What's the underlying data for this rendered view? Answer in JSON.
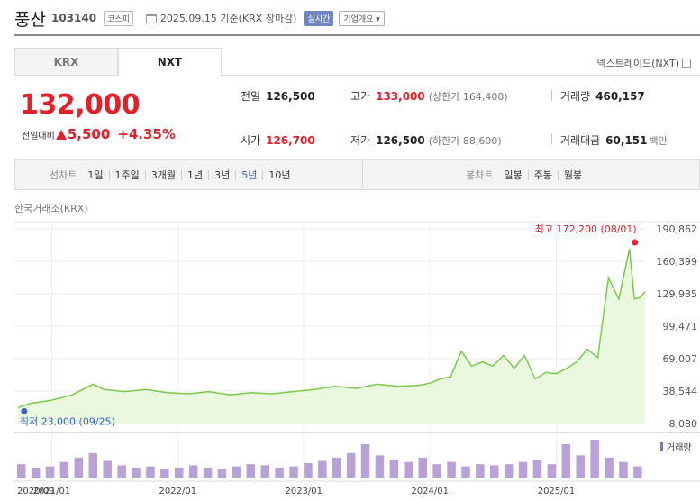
{
  "header": {
    "stock_name": "풍산",
    "stock_code": "103140",
    "market_badge": "코스피",
    "date_text": "2025.09.15  기준(KRX 장마감)",
    "live_badge": "실시간",
    "info_badge": "기업개요 ▾"
  },
  "tabs": {
    "krx": "KRX",
    "nxt": "NXT",
    "active": "NXT"
  },
  "nxt_trade_label": "넥스트레이드(NXT)",
  "price": {
    "current": "132,000",
    "change_label": "전일대비",
    "change_value": "5,500",
    "change_pct": "+4.35%",
    "direction": "up"
  },
  "stats": {
    "prev_close_label": "전일",
    "prev_close": "126,500",
    "high_label": "고가",
    "high": "133,000",
    "upper_limit": "(상한가 164,400)",
    "volume_label": "거래량",
    "volume": "460,157",
    "open_label": "시가",
    "open": "126,700",
    "low_label": "저가",
    "low": "126,500",
    "lower_limit": "(하한가 88,600)",
    "value_label": "거래대금",
    "value": "60,151",
    "value_unit": "백만"
  },
  "period": {
    "chart_label": "선차트",
    "items": [
      "1일",
      "1주일",
      "3개월",
      "1년",
      "3년",
      "5년",
      "10년"
    ],
    "active": "5년",
    "candle_label": "봉차트",
    "candle_items": [
      "일봉",
      "주봉",
      "월봉"
    ]
  },
  "exchange_label": "한국거래소(KRX)",
  "chart_data": {
    "type": "line",
    "title": "",
    "y_ticks": [
      190862,
      160399,
      129935,
      99471,
      69007,
      38544,
      8080
    ],
    "y_tick_labels": [
      "190,862",
      "160,399",
      "129,935",
      "99,471",
      "69,007",
      "38,544",
      "8,080"
    ],
    "ylim": [
      8080,
      190862
    ],
    "x_tick_labels": [
      "2020/09",
      "2021/01",
      "2022/01",
      "2023/01",
      "2024/01",
      "2025/01"
    ],
    "x_tick_dates": [
      "2020-09",
      "2021-01",
      "2022-01",
      "2023-01",
      "2024-01",
      "2025-01"
    ],
    "xlim": [
      "2020-09-15",
      "2025-09-15"
    ],
    "series": [
      {
        "name": "",
        "x": [
          "2020-09-25",
          "2020-11",
          "2021-01",
          "2021-03",
          "2021-05",
          "2021-06",
          "2021-08",
          "2021-10",
          "2021-12",
          "2022-02",
          "2022-04",
          "2022-06",
          "2022-08",
          "2022-10",
          "2022-12",
          "2023-02",
          "2023-04",
          "2023-06",
          "2023-08",
          "2023-10",
          "2023-12",
          "2024-01",
          "2024-02",
          "2024-03",
          "2024-04",
          "2024-05",
          "2024-06",
          "2024-07",
          "2024-08",
          "2024-09",
          "2024-10",
          "2024-11",
          "2024-12",
          "2025-01",
          "2025-02",
          "2025-03",
          "2025-04",
          "2025-05",
          "2025-06",
          "2025-07",
          "2025-08-01",
          "2025-08-15",
          "2025-09-01",
          "2025-09-15"
        ],
        "values": [
          23000,
          27000,
          30000,
          35000,
          45000,
          40000,
          38000,
          40000,
          37000,
          36000,
          38000,
          35000,
          37000,
          36000,
          38000,
          40000,
          43000,
          41000,
          45000,
          43000,
          44000,
          46000,
          50000,
          52000,
          76000,
          62000,
          66000,
          62000,
          72000,
          60000,
          72000,
          50000,
          56000,
          55000,
          60000,
          66000,
          78000,
          70000,
          145000,
          125000,
          172200,
          125000,
          126500,
          132000
        ]
      }
    ],
    "annotations": [
      {
        "label": "최고 172,200 (08/01)",
        "value": 172200
      },
      {
        "label": "최저 23,000 (09/25)",
        "value": 23000
      }
    ],
    "volume_label": "거래량",
    "volume": [
      12,
      9,
      10,
      14,
      18,
      22,
      15,
      11,
      9,
      10,
      8,
      9,
      11,
      9,
      8,
      10,
      12,
      11,
      9,
      10,
      13,
      15,
      18,
      22,
      30,
      20,
      16,
      14,
      18,
      12,
      14,
      10,
      12,
      11,
      12,
      14,
      16,
      12,
      30,
      20,
      34,
      18,
      14,
      10
    ],
    "line_color": "#7ac94a",
    "fill_color": "#eaf8df",
    "max_marker_color": "#e1202a",
    "min_marker_color": "#3a64c4",
    "volume_color": "#b9a0d6",
    "grid": true
  }
}
